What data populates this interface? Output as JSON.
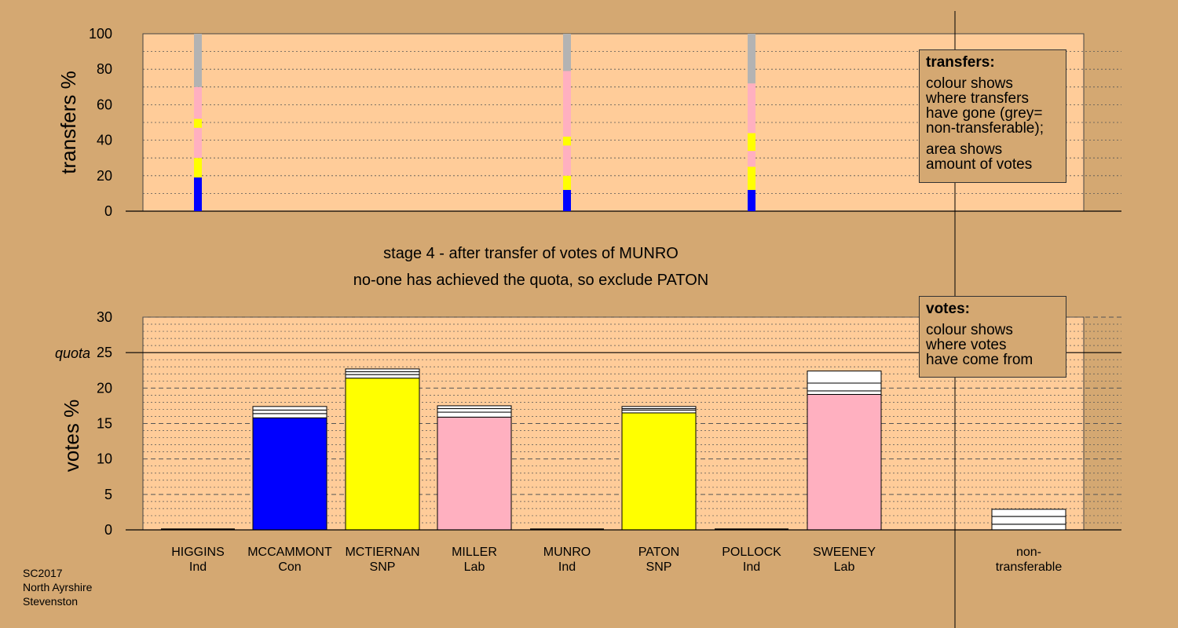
{
  "source": {
    "line1": "SC2017",
    "line2": "North Ayrshire",
    "line3": "Stevenston"
  },
  "caption": {
    "stage": "stage 4 - after transfer of votes of MUNRO",
    "status": "no-one has achieved the quota, so exclude PATON"
  },
  "legend_transfers": {
    "title": "transfers:",
    "l1": "colour shows",
    "l2": "where transfers",
    "l3": "have gone (grey=",
    "l4": "non-transferable);",
    "l5": "area shows",
    "l6": "amount of votes"
  },
  "legend_votes": {
    "title": "votes:",
    "l1": "colour shows",
    "l2": "where votes",
    "l3": "have come from"
  },
  "colors": {
    "background": "#D4A872",
    "plot_bg": "#FFCC99",
    "Con": "#0000FF",
    "SNP": "#FFFF00",
    "Lab": "#FFB0C0",
    "nontransferable": "#B3B3B3",
    "transfer_white": "#FFFFFF"
  },
  "chart_data": [
    {
      "type": "bar",
      "ylabel": "transfers %",
      "ylim": [
        0,
        100
      ],
      "yticks": [
        "0",
        "20",
        "40",
        "60",
        "80",
        "100"
      ],
      "columns": [
        {
          "candidate": "HIGGINS",
          "segments": [
            {
              "party": "Con",
              "value": 19
            },
            {
              "party": "SNP",
              "value": 11
            },
            {
              "party": "Lab",
              "value": 17
            },
            {
              "party": "SNP",
              "value": 5
            },
            {
              "party": "Lab",
              "value": 18
            },
            {
              "party": "nontransferable",
              "value": 30
            }
          ]
        },
        {
          "candidate": "MUNRO",
          "segments": [
            {
              "party": "Con",
              "value": 12
            },
            {
              "party": "SNP",
              "value": 8
            },
            {
              "party": "Lab",
              "value": 17
            },
            {
              "party": "SNP",
              "value": 5
            },
            {
              "party": "Lab",
              "value": 37
            },
            {
              "party": "nontransferable",
              "value": 21
            }
          ]
        },
        {
          "candidate": "POLLOCK",
          "segments": [
            {
              "party": "Con",
              "value": 12
            },
            {
              "party": "SNP",
              "value": 13
            },
            {
              "party": "Lab",
              "value": 9
            },
            {
              "party": "SNP",
              "value": 10
            },
            {
              "party": "Lab",
              "value": 28
            },
            {
              "party": "nontransferable",
              "value": 28
            }
          ]
        }
      ]
    },
    {
      "type": "bar",
      "ylabel": "votes %",
      "ylim": [
        0,
        30
      ],
      "yticks": [
        "0",
        "5",
        "10",
        "15",
        "20",
        "25",
        "30"
      ],
      "quota": {
        "label": "quota",
        "value": 25
      },
      "candidates": [
        {
          "name": "HIGGINS",
          "party": "Ind",
          "base": 0,
          "transfers": []
        },
        {
          "name": "MCCAMMONT",
          "party": "Con",
          "base": 15.8,
          "transfers": [
            0.6,
            0.5,
            0.5
          ]
        },
        {
          "name": "MCTIERNAN",
          "party": "SNP",
          "base": 21.4,
          "transfers": [
            0.5,
            0.4,
            0.4
          ]
        },
        {
          "name": "MILLER",
          "party": "Lab",
          "base": 15.9,
          "transfers": [
            0.7,
            0.5,
            0.4
          ]
        },
        {
          "name": "MUNRO",
          "party": "Ind",
          "base": 0,
          "transfers": []
        },
        {
          "name": "PATON",
          "party": "SNP",
          "base": 16.5,
          "transfers": [
            0.4,
            0.2,
            0.3
          ]
        },
        {
          "name": "POLLOCK",
          "party": "Ind",
          "base": 0,
          "transfers": []
        },
        {
          "name": "SWEENEY",
          "party": "Lab",
          "base": 19.1,
          "transfers": [
            0.5,
            1.1,
            1.7
          ]
        }
      ],
      "nontransferable": {
        "label1": "non-",
        "label2": "transferable",
        "transfers": [
          0.8,
          1.1,
          1.0
        ]
      }
    }
  ]
}
